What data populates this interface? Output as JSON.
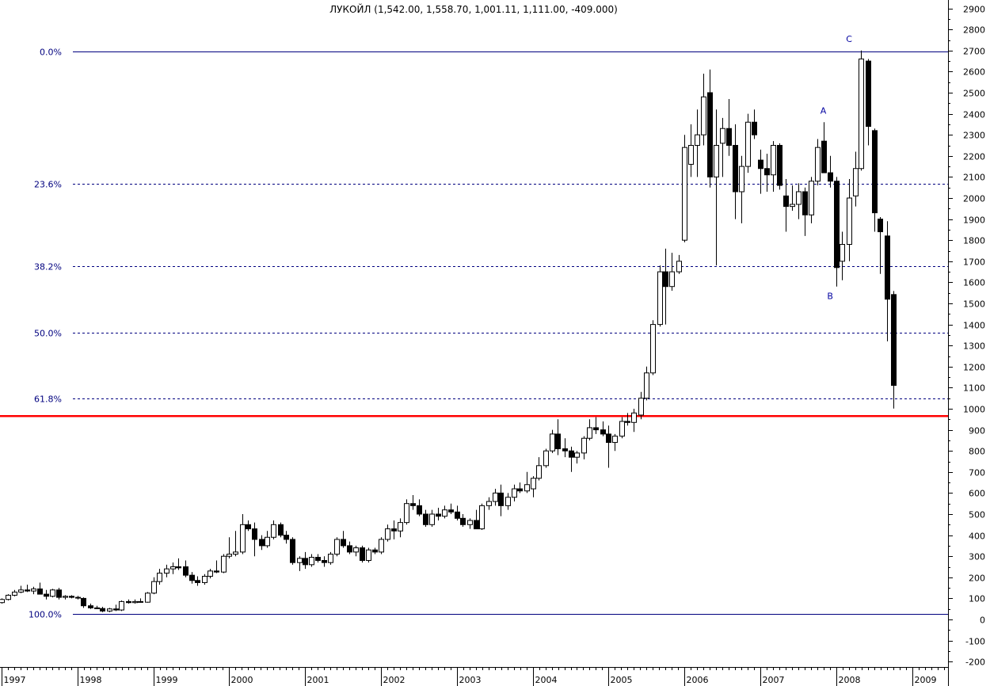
{
  "chart_data": {
    "type": "candlestick",
    "title": "ЛУКОЙЛ (1,542.00, 1,558.70, 1,001.11, 1,111.00, -409.000)",
    "y_axis": {
      "min": -200,
      "max": 2900,
      "step": 100,
      "position": "right",
      "ticks": [
        "2900",
        "2800",
        "2700",
        "2600",
        "2500",
        "2400",
        "2300",
        "2200",
        "2100",
        "2000",
        "1900",
        "1800",
        "1700",
        "1600",
        "1500",
        "1400",
        "1300",
        "1200",
        "1100",
        "1000",
        "900",
        "800",
        "700",
        "600",
        "500",
        "400",
        "300",
        "200",
        "100",
        "0",
        "-100",
        "-200"
      ]
    },
    "x_axis": {
      "years": [
        "1997",
        "1998",
        "1999",
        "2000",
        "2001",
        "2002",
        "2003",
        "2004",
        "2005",
        "2006",
        "2007",
        "2008",
        "2009"
      ]
    },
    "fibonacci_levels": [
      {
        "label": "0.0%",
        "value": 2695,
        "style": "solid",
        "color": "#00007f"
      },
      {
        "label": "23.6%",
        "value": 2066,
        "style": "dashed",
        "color": "#00007f"
      },
      {
        "label": "38.2%",
        "value": 1677,
        "style": "dashed",
        "color": "#00007f"
      },
      {
        "label": "50.0%",
        "value": 1362,
        "style": "dashed",
        "color": "#00007f"
      },
      {
        "label": "61.8%",
        "value": 1048,
        "style": "dashed",
        "color": "#00007f"
      },
      {
        "label": "100.0%",
        "value": 28,
        "style": "solid",
        "color": "#00007f"
      }
    ],
    "support_line": {
      "value": 965,
      "color": "#ff0000"
    },
    "annotations": [
      {
        "label": "A",
        "x": 2007.83,
        "y": 2400
      },
      {
        "label": "B",
        "x": 2007.92,
        "y": 1520
      },
      {
        "label": "C",
        "x": 2008.17,
        "y": 2740
      }
    ],
    "candles": [
      {
        "t": 1997.0,
        "o": 80,
        "h": 100,
        "l": 75,
        "c": 95
      },
      {
        "t": 1997.08,
        "o": 95,
        "h": 120,
        "l": 90,
        "c": 115
      },
      {
        "t": 1997.17,
        "o": 115,
        "h": 140,
        "l": 110,
        "c": 130
      },
      {
        "t": 1997.25,
        "o": 130,
        "h": 160,
        "l": 125,
        "c": 140
      },
      {
        "t": 1997.33,
        "o": 140,
        "h": 165,
        "l": 130,
        "c": 135
      },
      {
        "t": 1997.42,
        "o": 135,
        "h": 155,
        "l": 120,
        "c": 145
      },
      {
        "t": 1997.5,
        "o": 145,
        "h": 175,
        "l": 125,
        "c": 120
      },
      {
        "t": 1997.58,
        "o": 120,
        "h": 140,
        "l": 95,
        "c": 110
      },
      {
        "t": 1997.67,
        "o": 110,
        "h": 145,
        "l": 105,
        "c": 140
      },
      {
        "t": 1997.75,
        "o": 140,
        "h": 150,
        "l": 95,
        "c": 105
      },
      {
        "t": 1997.83,
        "o": 105,
        "h": 115,
        "l": 95,
        "c": 110
      },
      {
        "t": 1997.92,
        "o": 110,
        "h": 115,
        "l": 100,
        "c": 105
      },
      {
        "t": 1998.0,
        "o": 105,
        "h": 112,
        "l": 95,
        "c": 102
      },
      {
        "t": 1998.08,
        "o": 100,
        "h": 105,
        "l": 55,
        "c": 65
      },
      {
        "t": 1998.17,
        "o": 65,
        "h": 75,
        "l": 50,
        "c": 55
      },
      {
        "t": 1998.25,
        "o": 55,
        "h": 65,
        "l": 50,
        "c": 52
      },
      {
        "t": 1998.33,
        "o": 52,
        "h": 60,
        "l": 35,
        "c": 40
      },
      {
        "t": 1998.42,
        "o": 40,
        "h": 55,
        "l": 35,
        "c": 50
      },
      {
        "t": 1998.5,
        "o": 50,
        "h": 70,
        "l": 40,
        "c": 45
      },
      {
        "t": 1998.58,
        "o": 45,
        "h": 90,
        "l": 40,
        "c": 85
      },
      {
        "t": 1998.67,
        "o": 85,
        "h": 95,
        "l": 75,
        "c": 80
      },
      {
        "t": 1998.75,
        "o": 80,
        "h": 95,
        "l": 75,
        "c": 85
      },
      {
        "t": 1998.83,
        "o": 85,
        "h": 100,
        "l": 80,
        "c": 82
      },
      {
        "t": 1998.92,
        "o": 82,
        "h": 130,
        "l": 80,
        "c": 125
      },
      {
        "t": 1999.0,
        "o": 125,
        "h": 200,
        "l": 120,
        "c": 180
      },
      {
        "t": 1999.08,
        "o": 180,
        "h": 240,
        "l": 165,
        "c": 220
      },
      {
        "t": 1999.17,
        "o": 220,
        "h": 260,
        "l": 200,
        "c": 240
      },
      {
        "t": 1999.25,
        "o": 240,
        "h": 270,
        "l": 215,
        "c": 250
      },
      {
        "t": 1999.33,
        "o": 250,
        "h": 290,
        "l": 235,
        "c": 245
      },
      {
        "t": 1999.42,
        "o": 250,
        "h": 280,
        "l": 200,
        "c": 210
      },
      {
        "t": 1999.5,
        "o": 210,
        "h": 225,
        "l": 170,
        "c": 185
      },
      {
        "t": 1999.58,
        "o": 185,
        "h": 205,
        "l": 160,
        "c": 175
      },
      {
        "t": 1999.67,
        "o": 175,
        "h": 215,
        "l": 165,
        "c": 205
      },
      {
        "t": 1999.75,
        "o": 205,
        "h": 240,
        "l": 195,
        "c": 230
      },
      {
        "t": 1999.83,
        "o": 230,
        "h": 280,
        "l": 220,
        "c": 225
      },
      {
        "t": 1999.92,
        "o": 225,
        "h": 310,
        "l": 220,
        "c": 300
      },
      {
        "t": 2000.0,
        "o": 300,
        "h": 390,
        "l": 290,
        "c": 310
      },
      {
        "t": 2000.08,
        "o": 310,
        "h": 420,
        "l": 300,
        "c": 320
      },
      {
        "t": 2000.17,
        "o": 320,
        "h": 500,
        "l": 310,
        "c": 450
      },
      {
        "t": 2000.25,
        "o": 450,
        "h": 470,
        "l": 420,
        "c": 430
      },
      {
        "t": 2000.33,
        "o": 430,
        "h": 460,
        "l": 300,
        "c": 380
      },
      {
        "t": 2000.42,
        "o": 380,
        "h": 400,
        "l": 330,
        "c": 350
      },
      {
        "t": 2000.5,
        "o": 350,
        "h": 420,
        "l": 340,
        "c": 390
      },
      {
        "t": 2000.58,
        "o": 390,
        "h": 470,
        "l": 380,
        "c": 450
      },
      {
        "t": 2000.67,
        "o": 450,
        "h": 460,
        "l": 390,
        "c": 400
      },
      {
        "t": 2000.75,
        "o": 400,
        "h": 420,
        "l": 360,
        "c": 380
      },
      {
        "t": 2000.83,
        "o": 380,
        "h": 390,
        "l": 260,
        "c": 270
      },
      {
        "t": 2000.92,
        "o": 270,
        "h": 300,
        "l": 230,
        "c": 290
      },
      {
        "t": 2001.0,
        "o": 290,
        "h": 320,
        "l": 240,
        "c": 260
      },
      {
        "t": 2001.08,
        "o": 260,
        "h": 310,
        "l": 250,
        "c": 295
      },
      {
        "t": 2001.17,
        "o": 295,
        "h": 310,
        "l": 270,
        "c": 280
      },
      {
        "t": 2001.25,
        "o": 280,
        "h": 300,
        "l": 250,
        "c": 270
      },
      {
        "t": 2001.33,
        "o": 270,
        "h": 320,
        "l": 260,
        "c": 310
      },
      {
        "t": 2001.42,
        "o": 310,
        "h": 390,
        "l": 300,
        "c": 380
      },
      {
        "t": 2001.5,
        "o": 380,
        "h": 420,
        "l": 340,
        "c": 350
      },
      {
        "t": 2001.58,
        "o": 350,
        "h": 370,
        "l": 310,
        "c": 320
      },
      {
        "t": 2001.67,
        "o": 320,
        "h": 350,
        "l": 300,
        "c": 340
      },
      {
        "t": 2001.75,
        "o": 340,
        "h": 350,
        "l": 270,
        "c": 280
      },
      {
        "t": 2001.83,
        "o": 280,
        "h": 340,
        "l": 270,
        "c": 330
      },
      {
        "t": 2001.92,
        "o": 330,
        "h": 340,
        "l": 310,
        "c": 320
      },
      {
        "t": 2002.0,
        "o": 320,
        "h": 390,
        "l": 310,
        "c": 380
      },
      {
        "t": 2002.08,
        "o": 380,
        "h": 450,
        "l": 370,
        "c": 430
      },
      {
        "t": 2002.17,
        "o": 430,
        "h": 470,
        "l": 380,
        "c": 420
      },
      {
        "t": 2002.25,
        "o": 420,
        "h": 480,
        "l": 390,
        "c": 460
      },
      {
        "t": 2002.33,
        "o": 460,
        "h": 570,
        "l": 450,
        "c": 550
      },
      {
        "t": 2002.42,
        "o": 550,
        "h": 590,
        "l": 520,
        "c": 540
      },
      {
        "t": 2002.5,
        "o": 540,
        "h": 570,
        "l": 490,
        "c": 500
      },
      {
        "t": 2002.58,
        "o": 500,
        "h": 520,
        "l": 440,
        "c": 450
      },
      {
        "t": 2002.67,
        "o": 450,
        "h": 520,
        "l": 440,
        "c": 500
      },
      {
        "t": 2002.75,
        "o": 500,
        "h": 530,
        "l": 470,
        "c": 490
      },
      {
        "t": 2002.83,
        "o": 490,
        "h": 540,
        "l": 480,
        "c": 520
      },
      {
        "t": 2002.92,
        "o": 520,
        "h": 550,
        "l": 500,
        "c": 510
      },
      {
        "t": 2003.0,
        "o": 510,
        "h": 540,
        "l": 470,
        "c": 480
      },
      {
        "t": 2003.08,
        "o": 480,
        "h": 500,
        "l": 440,
        "c": 450
      },
      {
        "t": 2003.17,
        "o": 450,
        "h": 480,
        "l": 430,
        "c": 470
      },
      {
        "t": 2003.25,
        "o": 470,
        "h": 520,
        "l": 430,
        "c": 430
      },
      {
        "t": 2003.33,
        "o": 430,
        "h": 550,
        "l": 425,
        "c": 540
      },
      {
        "t": 2003.42,
        "o": 540,
        "h": 580,
        "l": 520,
        "c": 560
      },
      {
        "t": 2003.5,
        "o": 560,
        "h": 620,
        "l": 540,
        "c": 600
      },
      {
        "t": 2003.58,
        "o": 600,
        "h": 640,
        "l": 490,
        "c": 540
      },
      {
        "t": 2003.67,
        "o": 540,
        "h": 600,
        "l": 520,
        "c": 580
      },
      {
        "t": 2003.75,
        "o": 580,
        "h": 640,
        "l": 560,
        "c": 620
      },
      {
        "t": 2003.83,
        "o": 620,
        "h": 650,
        "l": 600,
        "c": 610
      },
      {
        "t": 2003.92,
        "o": 610,
        "h": 700,
        "l": 600,
        "c": 640
      },
      {
        "t": 2004.0,
        "o": 620,
        "h": 680,
        "l": 580,
        "c": 670
      },
      {
        "t": 2004.08,
        "o": 670,
        "h": 770,
        "l": 660,
        "c": 730
      },
      {
        "t": 2004.17,
        "o": 730,
        "h": 810,
        "l": 720,
        "c": 800
      },
      {
        "t": 2004.25,
        "o": 800,
        "h": 900,
        "l": 790,
        "c": 880
      },
      {
        "t": 2004.33,
        "o": 880,
        "h": 950,
        "l": 780,
        "c": 810
      },
      {
        "t": 2004.42,
        "o": 810,
        "h": 860,
        "l": 770,
        "c": 800
      },
      {
        "t": 2004.5,
        "o": 800,
        "h": 820,
        "l": 700,
        "c": 770
      },
      {
        "t": 2004.58,
        "o": 770,
        "h": 800,
        "l": 740,
        "c": 790
      },
      {
        "t": 2004.67,
        "o": 790,
        "h": 870,
        "l": 760,
        "c": 860
      },
      {
        "t": 2004.75,
        "o": 860,
        "h": 950,
        "l": 850,
        "c": 910
      },
      {
        "t": 2004.83,
        "o": 910,
        "h": 960,
        "l": 880,
        "c": 900
      },
      {
        "t": 2004.92,
        "o": 900,
        "h": 940,
        "l": 870,
        "c": 880
      },
      {
        "t": 2005.0,
        "o": 880,
        "h": 920,
        "l": 720,
        "c": 840
      },
      {
        "t": 2005.08,
        "o": 840,
        "h": 880,
        "l": 800,
        "c": 870
      },
      {
        "t": 2005.17,
        "o": 870,
        "h": 960,
        "l": 860,
        "c": 940
      },
      {
        "t": 2005.25,
        "o": 940,
        "h": 980,
        "l": 920,
        "c": 935
      },
      {
        "t": 2005.33,
        "o": 935,
        "h": 1000,
        "l": 890,
        "c": 980
      },
      {
        "t": 2005.42,
        "o": 970,
        "h": 1080,
        "l": 950,
        "c": 1050
      },
      {
        "t": 2005.5,
        "o": 1050,
        "h": 1200,
        "l": 1040,
        "c": 1170
      },
      {
        "t": 2005.58,
        "o": 1170,
        "h": 1420,
        "l": 1160,
        "c": 1400
      },
      {
        "t": 2005.67,
        "o": 1400,
        "h": 1680,
        "l": 1390,
        "c": 1650
      },
      {
        "t": 2005.75,
        "o": 1650,
        "h": 1760,
        "l": 1400,
        "c": 1580
      },
      {
        "t": 2005.83,
        "o": 1580,
        "h": 1740,
        "l": 1560,
        "c": 1650
      },
      {
        "t": 2005.92,
        "o": 1650,
        "h": 1730,
        "l": 1640,
        "c": 1700
      },
      {
        "t": 2006.0,
        "o": 1800,
        "h": 2300,
        "l": 1790,
        "c": 2240
      },
      {
        "t": 2006.08,
        "o": 2160,
        "h": 2350,
        "l": 2100,
        "c": 2250
      },
      {
        "t": 2006.17,
        "o": 2250,
        "h": 2420,
        "l": 2100,
        "c": 2300
      },
      {
        "t": 2006.25,
        "o": 2300,
        "h": 2590,
        "l": 2250,
        "c": 2480
      },
      {
        "t": 2006.33,
        "o": 2500,
        "h": 2610,
        "l": 2050,
        "c": 2100
      },
      {
        "t": 2006.42,
        "o": 2100,
        "h": 2420,
        "l": 1680,
        "c": 2250
      },
      {
        "t": 2006.5,
        "o": 2260,
        "h": 2380,
        "l": 2100,
        "c": 2330
      },
      {
        "t": 2006.58,
        "o": 2330,
        "h": 2470,
        "l": 2200,
        "c": 2250
      },
      {
        "t": 2006.67,
        "o": 2250,
        "h": 2350,
        "l": 1900,
        "c": 2030
      },
      {
        "t": 2006.75,
        "o": 2030,
        "h": 2200,
        "l": 1880,
        "c": 2150
      },
      {
        "t": 2006.83,
        "o": 2150,
        "h": 2400,
        "l": 2120,
        "c": 2360
      },
      {
        "t": 2006.92,
        "o": 2360,
        "h": 2420,
        "l": 2280,
        "c": 2300
      },
      {
        "t": 2007.0,
        "o": 2180,
        "h": 2230,
        "l": 2020,
        "c": 2140
      },
      {
        "t": 2007.08,
        "o": 2140,
        "h": 2210,
        "l": 2030,
        "c": 2110
      },
      {
        "t": 2007.17,
        "o": 2110,
        "h": 2270,
        "l": 2030,
        "c": 2250
      },
      {
        "t": 2007.25,
        "o": 2250,
        "h": 2260,
        "l": 2040,
        "c": 2060
      },
      {
        "t": 2007.33,
        "o": 2010,
        "h": 2090,
        "l": 1840,
        "c": 1960
      },
      {
        "t": 2007.42,
        "o": 1960,
        "h": 2060,
        "l": 1940,
        "c": 1970
      },
      {
        "t": 2007.5,
        "o": 1970,
        "h": 2070,
        "l": 1900,
        "c": 2030
      },
      {
        "t": 2007.58,
        "o": 2030,
        "h": 2050,
        "l": 1820,
        "c": 1920
      },
      {
        "t": 2007.67,
        "o": 1920,
        "h": 2100,
        "l": 1880,
        "c": 2080
      },
      {
        "t": 2007.75,
        "o": 2080,
        "h": 2280,
        "l": 2060,
        "c": 2240
      },
      {
        "t": 2007.83,
        "o": 2270,
        "h": 2360,
        "l": 2120,
        "c": 2120
      },
      {
        "t": 2007.92,
        "o": 2120,
        "h": 2200,
        "l": 2050,
        "c": 2080
      },
      {
        "t": 2008.0,
        "o": 2080,
        "h": 2100,
        "l": 1580,
        "c": 1670
      },
      {
        "t": 2008.08,
        "o": 1700,
        "h": 1840,
        "l": 1610,
        "c": 1780
      },
      {
        "t": 2008.17,
        "o": 1780,
        "h": 2090,
        "l": 1700,
        "c": 2000
      },
      {
        "t": 2008.25,
        "o": 2010,
        "h": 2220,
        "l": 1960,
        "c": 2140
      },
      {
        "t": 2008.33,
        "o": 2140,
        "h": 2700,
        "l": 2130,
        "c": 2660
      },
      {
        "t": 2008.42,
        "o": 2650,
        "h": 2660,
        "l": 2250,
        "c": 2340
      },
      {
        "t": 2008.5,
        "o": 2320,
        "h": 2330,
        "l": 1840,
        "c": 1930
      },
      {
        "t": 2008.58,
        "o": 1900,
        "h": 1910,
        "l": 1640,
        "c": 1840
      },
      {
        "t": 2008.67,
        "o": 1820,
        "h": 1890,
        "l": 1320,
        "c": 1520
      },
      {
        "t": 2008.75,
        "o": 1542,
        "h": 1558.7,
        "l": 1001.11,
        "c": 1111
      }
    ]
  }
}
